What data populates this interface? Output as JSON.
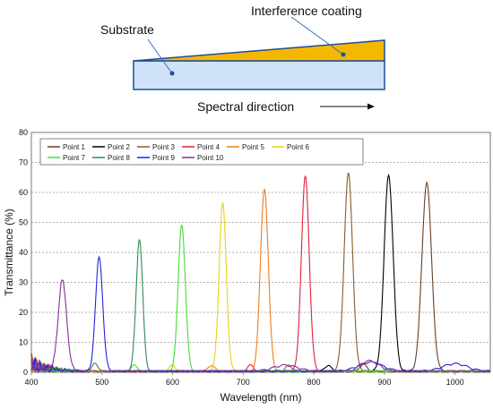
{
  "diagram": {
    "coating_label": "Interference coating",
    "substrate_label": "Substrate",
    "direction_label": "Spectral direction",
    "colors": {
      "coating": "#f5b800",
      "substrate": "#cfe2f7",
      "outline": "#1f4e9b",
      "leader": "#3a6fb5"
    }
  },
  "chart_data": {
    "type": "line",
    "xlabel": "Wavelength (nm)",
    "ylabel": "Transmittance (%)",
    "xlim": [
      400,
      1050
    ],
    "ylim": [
      0,
      80
    ],
    "xticks": [
      400,
      500,
      600,
      700,
      800,
      900,
      1000
    ],
    "yticks": [
      0,
      10,
      20,
      30,
      40,
      50,
      60,
      70,
      80
    ],
    "grid": "horizontal-dashed",
    "legend_position": "top",
    "series": [
      {
        "name": "Point 1",
        "color": "#6b3f1f",
        "peak_nm": 960,
        "peak": 63,
        "fwhm": 16,
        "minor": [
          [
            870,
            2.5,
            10
          ]
        ]
      },
      {
        "name": "Point 2",
        "color": "#000000",
        "peak_nm": 906,
        "peak": 65.5,
        "fwhm": 15,
        "minor": [
          [
            820,
            2,
            10
          ]
        ]
      },
      {
        "name": "Point 3",
        "color": "#8b5a2b",
        "peak_nm": 849,
        "peak": 66,
        "fwhm": 14,
        "minor": [
          [
            765,
            2,
            10
          ]
        ]
      },
      {
        "name": "Point 4",
        "color": "#e0203a",
        "peak_nm": 788,
        "peak": 65,
        "fwhm": 13,
        "minor": [
          [
            710,
            2,
            10
          ]
        ]
      },
      {
        "name": "Point 5",
        "color": "#f07d1a",
        "peak_nm": 730,
        "peak": 61,
        "fwhm": 13,
        "minor": [
          [
            655,
            2,
            10
          ]
        ]
      },
      {
        "name": "Point 6",
        "color": "#e8d21a",
        "peak_nm": 671,
        "peak": 56,
        "fwhm": 12,
        "minor": [
          [
            600,
            2,
            10
          ]
        ]
      },
      {
        "name": "Point 7",
        "color": "#44dd33",
        "peak_nm": 613,
        "peak": 49,
        "fwhm": 12,
        "minor": [
          [
            545,
            2,
            10
          ]
        ]
      },
      {
        "name": "Point 8",
        "color": "#2e8b57",
        "peak_nm": 553,
        "peak": 44,
        "fwhm": 11,
        "minor": [
          [
            490,
            3,
            8
          ]
        ]
      },
      {
        "name": "Point 9",
        "color": "#2222dd",
        "peak_nm": 496,
        "peak": 38,
        "fwhm": 12,
        "minor": [
          [
            880,
            3,
            40
          ],
          [
            1000,
            2.5,
            40
          ]
        ]
      },
      {
        "name": "Point 10",
        "color": "#8b2a9b",
        "peak_nm": 444,
        "peak": 30,
        "fwhm": 14,
        "minor": [
          [
            760,
            2,
            40
          ],
          [
            880,
            3.5,
            30
          ]
        ]
      }
    ]
  }
}
